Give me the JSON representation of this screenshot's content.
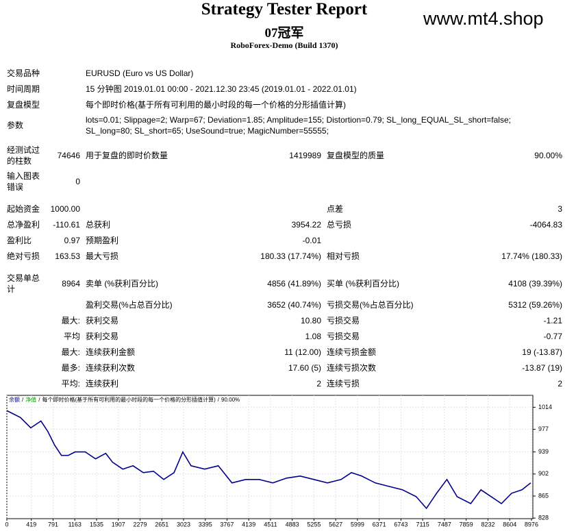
{
  "header": {
    "title": "Strategy Tester Report",
    "name": "07冠军",
    "server": "RoboForex-Demo (Build 1370)",
    "watermark": "www.mt4.shop"
  },
  "info": [
    {
      "label": "交易品种",
      "value": "EURUSD (Euro vs US Dollar)"
    },
    {
      "label": "时间周期",
      "value": "15 分钟图 2019.01.01 00:00 - 2021.12.30 23:45 (2019.01.01 - 2022.01.01)"
    },
    {
      "label": "复盘模型",
      "value": "每个即时价格(基于所有可利用的最小时段的每一个价格的分形插值计算)"
    },
    {
      "label": "参数",
      "value": "lots=0.01; Slippage=2; Warp=67; Deviation=1.85; Amplitude=155; Distortion=0.79; SL_long_EQUAL_SL_short=false; SL_long=80; SL_short=65; UseSound=true; MagicNumber=55555;"
    }
  ],
  "stats": [
    [
      "经测试过的柱数",
      "74646",
      "用于复盘的即时价数量",
      "1419989",
      "复盘模型的质量",
      "90.00%"
    ],
    [
      "输入图表错误",
      "0",
      null,
      null,
      null,
      null
    ],
    [
      "起始资金",
      "1000.00",
      null,
      null,
      "点差",
      "3"
    ],
    [
      "总净盈利",
      "-110.61",
      "总获利",
      "3954.22",
      "总亏损",
      "-4064.83"
    ],
    [
      "盈利比",
      "0.97",
      "预期盈利",
      "-0.01",
      null,
      null
    ],
    [
      "绝对亏损",
      "163.53",
      "最大亏损",
      "180.33 (17.74%)",
      "相对亏损",
      "17.74% (180.33)"
    ],
    [
      "交易单总计",
      "8964",
      "卖单 (%获利百分比)",
      "4856 (41.89%)",
      "买单 (%获利百分比)",
      "4108 (39.39%)"
    ],
    [
      null,
      null,
      "盈利交易(%占总百分比)",
      "3652 (40.74%)",
      "亏损交易(%占总百分比)",
      "5312 (59.26%)"
    ],
    [
      null,
      "最大:",
      "获利交易",
      "10.80",
      "亏损交易",
      "-1.21"
    ],
    [
      null,
      "平均",
      "获利交易",
      "1.08",
      "亏损交易",
      "-0.77"
    ],
    [
      null,
      "最大:",
      "连续获利金额",
      "11 (12.00)",
      "连续亏损金额",
      "19 (-13.87)"
    ],
    [
      null,
      "最多:",
      "连续获利次数",
      "17.60 (5)",
      "连续亏损次数",
      "-13.87 (19)"
    ],
    [
      null,
      "平均:",
      "连续获利",
      "2",
      "连续亏损",
      "2"
    ]
  ],
  "chart_data": {
    "type": "line",
    "legend_separator": "/",
    "equity": {
      "name": "净值",
      "color": "#009900"
    },
    "model_note": "每个即时价格(基于所有可利用的最小时段的每一个价格的分形插值计算)",
    "quality": "90.00%",
    "x": [
      0,
      117,
      233,
      409,
      584,
      700,
      817,
      934,
      1050,
      1167,
      1342,
      1517,
      1692,
      1809,
      1984,
      2159,
      2334,
      2509,
      2684,
      2860,
      3011,
      3151,
      3385,
      3618,
      3852,
      4085,
      4319,
      4552,
      4786,
      5019,
      5253,
      5486,
      5720,
      5895,
      6070,
      6303,
      6537,
      6770,
      7004,
      7179,
      7354,
      7529,
      7704,
      7937,
      8112,
      8287,
      8462,
      8637,
      8812,
      8964
    ],
    "series": [
      {
        "name": "余额",
        "color": "#00008b",
        "values": [
          1008.2,
          1002.5,
          996.7,
          979.4,
          990.9,
          973.6,
          950.5,
          933.2,
          933.2,
          939,
          939,
          927.4,
          936.6,
          921.6,
          910.1,
          915.8,
          904.3,
          906.6,
          892.8,
          904.3,
          939,
          915.8,
          910.1,
          915.8,
          887,
          892.8,
          892.8,
          887,
          895.1,
          898.5,
          892.8,
          887,
          892.8,
          904.3,
          898.5,
          887,
          881.2,
          875.4,
          863.9,
          844.3,
          869.7,
          892.8,
          863.9,
          852.3,
          875.4,
          863.9,
          852.3,
          869.7,
          875.4,
          887
        ]
      }
    ],
    "xlim": [
      0,
      9000
    ],
    "ylim": [
      827,
      1034
    ],
    "xticks": [
      0,
      419,
      791,
      1163,
      1535,
      1907,
      2279,
      2651,
      3023,
      3395,
      3767,
      4139,
      4511,
      4883,
      5255,
      5627,
      5999,
      6371,
      6743,
      7115,
      7487,
      7859,
      8232,
      8604,
      8976
    ],
    "yticks": [
      1014,
      977,
      939,
      902,
      865,
      828
    ],
    "grid": true
  }
}
